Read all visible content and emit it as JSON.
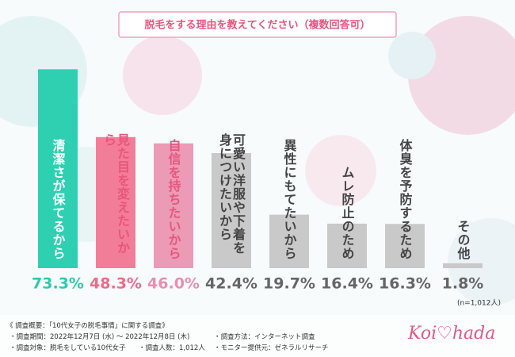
{
  "chart_data": {
    "type": "bar",
    "title": "脱毛をする理由を教えてください（複数回答可）",
    "categories": [
      "清潔さが保てるから",
      "見た目を変えたいから",
      "自信を持ちたいから",
      "可愛い洋服や下着を身につけたいから",
      "異性にもてたいから",
      "ムレ防止のため",
      "体臭を予防するため",
      "その他"
    ],
    "values": [
      73.3,
      48.3,
      46.0,
      42.4,
      19.7,
      16.4,
      16.3,
      1.8
    ],
    "value_labels": [
      "73.3%",
      "48.3%",
      "46.0%",
      "42.4%",
      "19.7%",
      "16.4%",
      "16.3%",
      "1.8%"
    ],
    "colors": [
      "#2fd0b2",
      "#f27d98",
      "#eb9bb5",
      "#c9c9c9",
      "#c9c9c9",
      "#c9c9c9",
      "#c9c9c9",
      "#c9c9c9"
    ],
    "value_label_colors": [
      "#2fc9ab",
      "#f06a8a",
      "#ea8fae",
      "#666666",
      "#666666",
      "#666666",
      "#666666",
      "#666666"
    ],
    "category_label_colors": [
      "#ffffff",
      "#e8557e",
      "#e8557e",
      "#444444",
      "#444444",
      "#444444",
      "#444444",
      "#444444"
    ],
    "note": "(n=1,012人)"
  },
  "footer": {
    "heading": "《 調査概要：「10代女子の脱毛事情」に関する調査》",
    "items": [
      "・調査期間：2022年12月7日 (水) 〜 2022年12月8日 (木)",
      "・調査方法：インターネット調査",
      "・調査対象：脱毛をしている10代女子",
      "・調査人数：1,012人",
      "・モニター提供元：ゼネラルリサーチ"
    ]
  },
  "logo": "Koi♡hada"
}
